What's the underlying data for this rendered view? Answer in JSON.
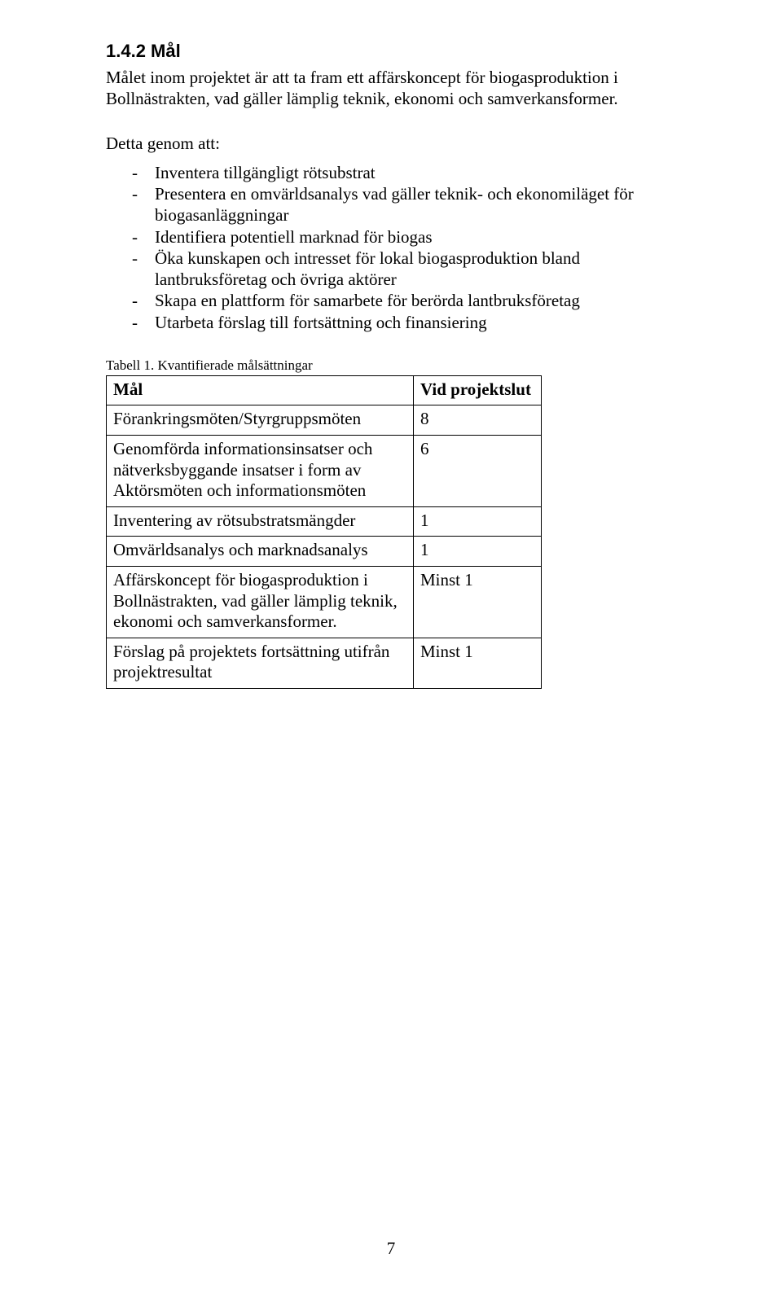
{
  "heading": "1.4.2 Mål",
  "intro_para": "Målet inom projektet är att ta fram ett affärskoncept för biogasproduktion i Bollnästrakten, vad gäller lämplig teknik, ekonomi och samverkansformer.",
  "lead_in": "Detta genom att:",
  "bullets": [
    "Inventera tillgängligt rötsubstrat",
    "Presentera en omvärldsanalys vad gäller teknik- och ekonomiläget för biogasanläggningar",
    "Identifiera potentiell marknad för biogas",
    "Öka kunskapen och intresset för lokal biogasproduktion bland lantbruksföretag och övriga aktörer",
    "Skapa en plattform för samarbete för berörda lantbruksföretag",
    "Utarbeta förslag till fortsättning och finansiering"
  ],
  "table_caption": "Tabell 1. Kvantifierade målsättningar",
  "table": {
    "header": {
      "c1": "Mål",
      "c2": "Vid projektslut"
    },
    "rows": [
      {
        "c1": "Förankringsmöten/Styrgruppsmöten",
        "c2": "8"
      },
      {
        "c1": "Genomförda informationsinsatser och nätverksbyggande insatser i form av Aktörsmöten och informationsmöten",
        "c2": "6"
      },
      {
        "c1": "Inventering av rötsubstratsmängder",
        "c2": "1"
      },
      {
        "c1": "Omvärldsanalys och marknadsanalys",
        "c2": "1"
      },
      {
        "c1": "Affärskoncept för biogasproduktion i Bollnästrakten, vad gäller lämplig teknik, ekonomi och samverkansformer.",
        "c2": "Minst 1"
      },
      {
        "c1": "Förslag på projektets fortsättning utifrån projektresultat",
        "c2": "Minst 1"
      }
    ]
  },
  "page_number": "7"
}
